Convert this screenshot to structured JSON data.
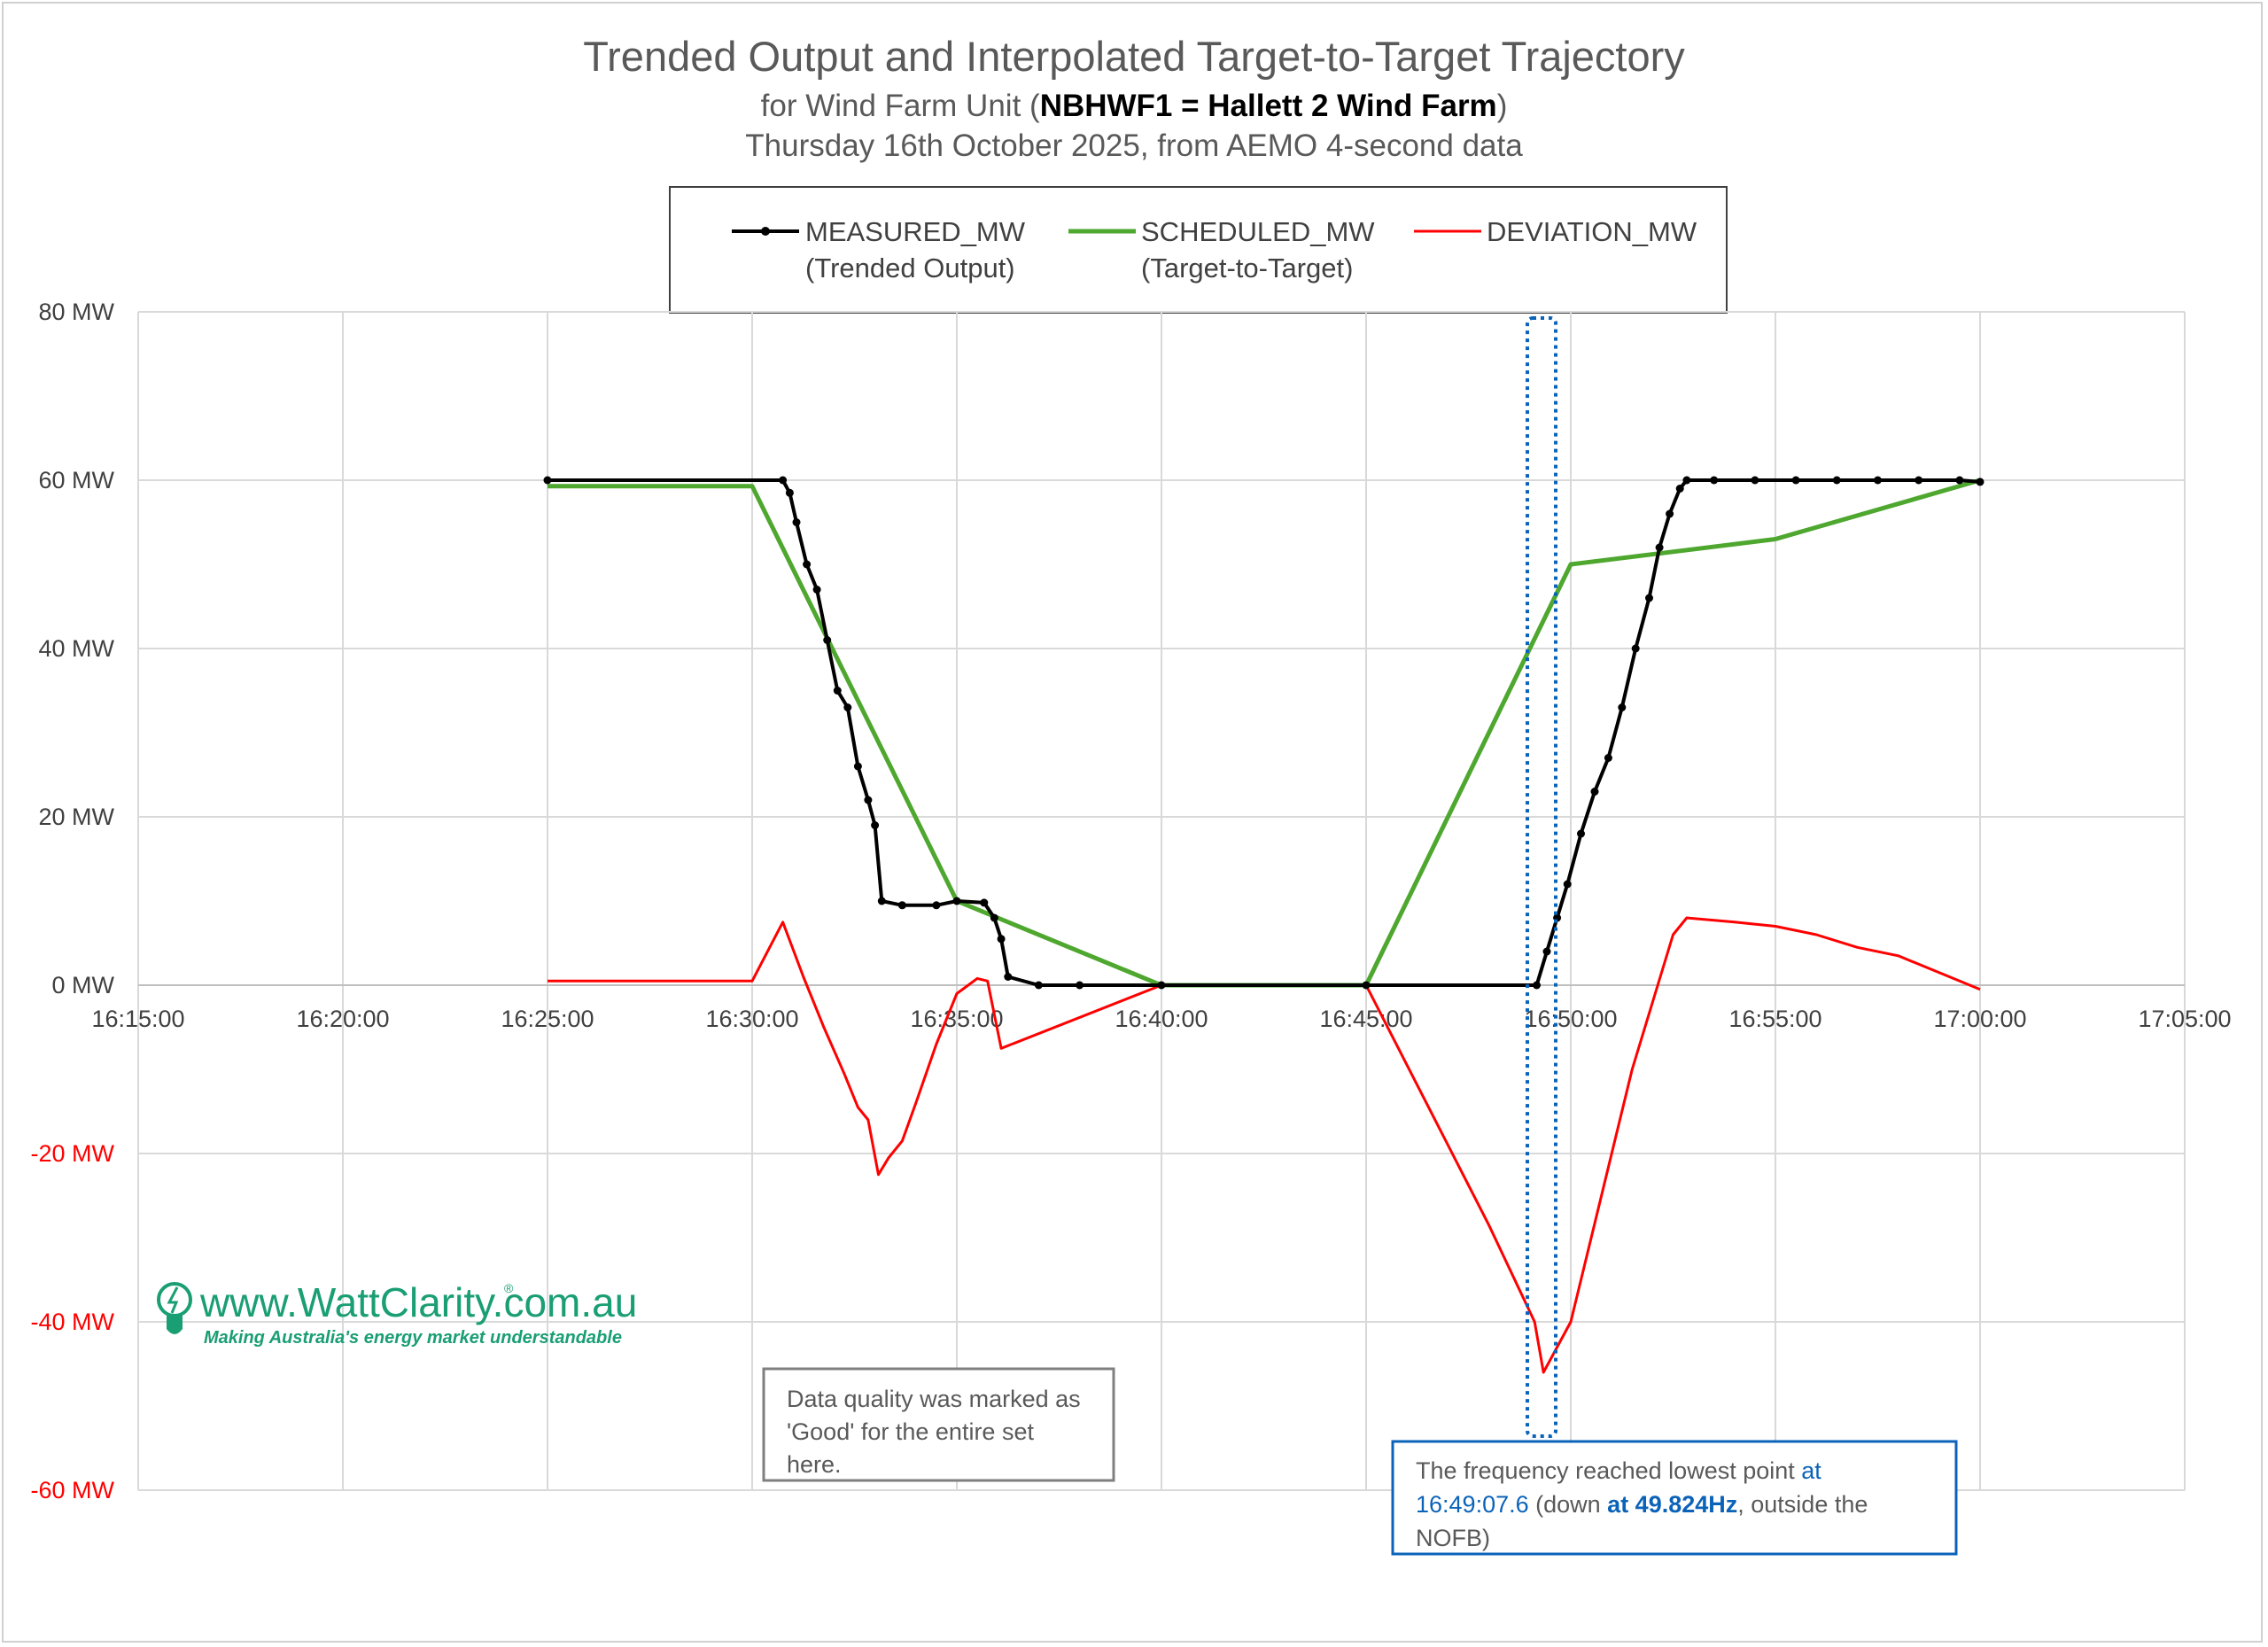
{
  "chart": {
    "title": "Trended Output and Interpolated Target-to-Target Trajectory",
    "subtitle_prefix": "for Wind Farm Unit (",
    "subtitle_bold": "NBHWF1 = Hallett 2 Wind Farm",
    "subtitle_suffix": ")",
    "subtitle2": "Thursday 16th October 2025, from AEMO 4-second data"
  },
  "legend": {
    "placement": "top-center",
    "items": [
      {
        "line1": "MEASURED_MW",
        "line2": "(Trended Output)",
        "color": "#000000",
        "marker": true
      },
      {
        "line1": "SCHEDULED_MW",
        "line2": "(Target-to-Target)",
        "color": "#4ea72e",
        "marker": false
      },
      {
        "line1": "DEVIATION_MW",
        "line2": "",
        "color": "#ff0000",
        "marker": false
      }
    ]
  },
  "axes": {
    "y_ticks": [
      {
        "value": 80,
        "label": "80 MW",
        "color": "#404040"
      },
      {
        "value": 60,
        "label": "60 MW",
        "color": "#404040"
      },
      {
        "value": 40,
        "label": "40 MW",
        "color": "#404040"
      },
      {
        "value": 20,
        "label": "20 MW",
        "color": "#404040"
      },
      {
        "value": 0,
        "label": "0 MW",
        "color": "#404040"
      },
      {
        "value": -20,
        "label": "-20 MW",
        "color": "#ff0000"
      },
      {
        "value": -40,
        "label": "-40 MW",
        "color": "#ff0000"
      },
      {
        "value": -60,
        "label": "-60 MW",
        "color": "#ff0000"
      }
    ],
    "x_ticks": [
      "16:15:00",
      "16:20:00",
      "16:25:00",
      "16:30:00",
      "16:35:00",
      "16:40:00",
      "16:45:00",
      "16:50:00",
      "16:55:00",
      "17:00:00",
      "17:05:00"
    ]
  },
  "chart_data": {
    "type": "line",
    "x_unit": "time of day",
    "xlim": [
      "16:15:00",
      "17:05:00"
    ],
    "ylim": [
      -60,
      80
    ],
    "grid": true,
    "series": [
      {
        "name": "MEASURED_MW",
        "color": "#000000",
        "x": [
          "16:25:00",
          "16:30:45",
          "16:30:55",
          "16:31:05",
          "16:31:20",
          "16:31:35",
          "16:31:50",
          "16:32:05",
          "16:32:20",
          "16:32:35",
          "16:32:50",
          "16:33:00",
          "16:33:10",
          "16:33:40",
          "16:34:30",
          "16:35:00",
          "16:35:40",
          "16:35:55",
          "16:36:05",
          "16:36:15",
          "16:37:00",
          "16:38:00",
          "16:40:00",
          "16:45:00",
          "16:49:10",
          "16:49:25",
          "16:49:40",
          "16:49:55",
          "16:50:15",
          "16:50:35",
          "16:50:55",
          "16:51:15",
          "16:51:35",
          "16:51:55",
          "16:52:10",
          "16:52:25",
          "16:52:40",
          "16:52:50",
          "16:53:30",
          "16:54:30",
          "16:55:30",
          "16:56:30",
          "16:57:30",
          "16:58:30",
          "16:59:30",
          "17:00:00"
        ],
        "y": [
          60.0,
          60.0,
          58.5,
          55.0,
          50.0,
          47.0,
          41.0,
          35.0,
          33.0,
          26.0,
          22.0,
          19.0,
          10.0,
          9.5,
          9.5,
          10.0,
          9.8,
          8.0,
          5.5,
          1.0,
          0.0,
          0.0,
          0.0,
          0.0,
          0.0,
          4.0,
          8.0,
          12.0,
          18.0,
          23.0,
          27.0,
          33.0,
          40.0,
          46.0,
          52.0,
          56.0,
          59.0,
          60.0,
          60.0,
          60.0,
          60.0,
          60.0,
          60.0,
          60.0,
          60.0,
          59.8
        ]
      },
      {
        "name": "SCHEDULED_MW",
        "color": "#4ea72e",
        "x": [
          "16:25:00",
          "16:30:00",
          "16:35:00",
          "16:40:00",
          "16:45:00",
          "16:50:00",
          "16:55:00",
          "17:00:00"
        ],
        "y": [
          59.3,
          59.3,
          10.0,
          0.0,
          0.0,
          50.0,
          53.0,
          60.0
        ]
      },
      {
        "name": "DEVIATION_MW",
        "color": "#ff0000",
        "x": [
          "16:25:00",
          "16:27:00",
          "16:29:00",
          "16:30:00",
          "16:30:45",
          "16:31:15",
          "16:31:45",
          "16:32:15",
          "16:32:35",
          "16:32:50",
          "16:33:05",
          "16:33:20",
          "16:33:40",
          "16:34:00",
          "16:34:30",
          "16:35:00",
          "16:35:30",
          "16:35:45",
          "16:36:05",
          "16:40:00",
          "16:45:00",
          "16:46:00",
          "16:47:00",
          "16:48:00",
          "16:49:07",
          "16:49:20",
          "16:49:40",
          "16:50:00",
          "16:50:30",
          "16:51:00",
          "16:51:30",
          "16:52:00",
          "16:52:30",
          "16:52:50",
          "16:54:00",
          "16:55:00",
          "16:56:00",
          "16:57:00",
          "16:58:00",
          "16:59:00",
          "17:00:00"
        ],
        "y": [
          0.5,
          0.5,
          0.5,
          0.5,
          7.5,
          1.0,
          -5.0,
          -10.5,
          -14.5,
          -16.0,
          -22.5,
          -20.5,
          -18.5,
          -14.0,
          -7.0,
          -1.0,
          0.8,
          0.5,
          -7.5,
          0.0,
          0.0,
          -9.5,
          -19.0,
          -28.5,
          -40.0,
          -46.0,
          -43.0,
          -40.0,
          -30.0,
          -20.0,
          -10.0,
          -2.0,
          6.0,
          8.0,
          7.5,
          7.0,
          6.0,
          4.5,
          3.5,
          1.5,
          -0.5
        ]
      }
    ]
  },
  "annotations": {
    "data_quality_lines": [
      "Data quality was marked as",
      "'Good' for the entire set",
      "here."
    ],
    "frequency": {
      "line1_prefix": "The frequency reached lowest point ",
      "line1_hl": "at",
      "line2_hl": "16:49:07.6",
      "line2_mid": " (down ",
      "line2_bold": "at 49.824Hz",
      "line2_suffix": ", outside the",
      "line3": "NOFB)"
    },
    "highlight_box_time": "16:49:07.6"
  },
  "logo": {
    "name": "www.WattClarity.com.au",
    "registered": "®",
    "tagline": "Making Australia's energy market understandable",
    "color": "#1a9e73"
  }
}
